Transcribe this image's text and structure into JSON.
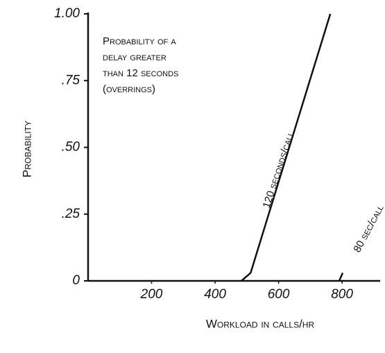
{
  "chart_data": {
    "type": "line",
    "annotation": [
      "Probability of a",
      "delay greater",
      "than 12 seconds",
      "(overrings)"
    ],
    "x_label": "Workload in calls/hr",
    "y_label": "Probability",
    "xlim": [
      0,
      920
    ],
    "xticks": [
      200,
      400,
      600,
      800
    ],
    "ylim": [
      0,
      1
    ],
    "yticks": [
      0,
      {
        "value": 0.25,
        "label": ".25"
      },
      {
        "value": 0.5,
        "label": ".50"
      },
      {
        "value": 0.75,
        "label": ".75"
      },
      {
        "value": 1,
        "label": "1.00"
      }
    ],
    "series": [
      {
        "name": "120 seconds/call",
        "color": "#111111",
        "x": [
          483,
          512,
          763
        ],
        "values": [
          0,
          0.03,
          1
        ]
      },
      {
        "name": "80 sec/call",
        "color": "#111111",
        "x": [
          791,
          802
        ],
        "values": [
          0,
          0.03
        ]
      }
    ]
  }
}
